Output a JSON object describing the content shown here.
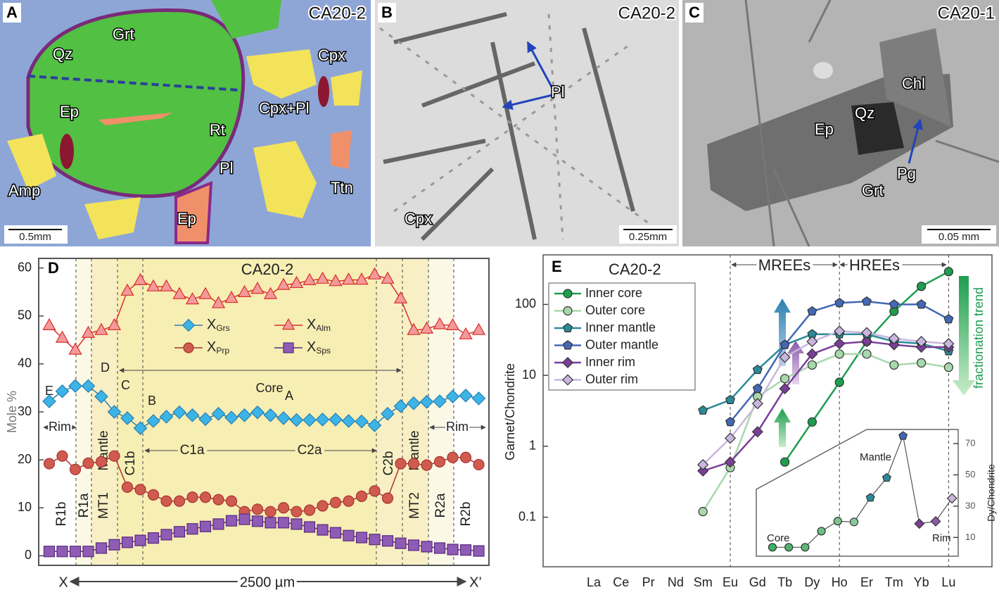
{
  "panels": [
    {
      "label": "A",
      "sample": "CA20-2",
      "minerals": [
        "Grt",
        "Qz",
        "Cpx",
        "Ep",
        "Rt",
        "Cpx+Pl",
        "Pl",
        "Amp",
        "Ttn",
        "Ep"
      ],
      "scale": "0.5mm"
    },
    {
      "label": "B",
      "sample": "CA20-2",
      "minerals": [
        "Pl",
        "Cpx"
      ],
      "scale": "0.25mm"
    },
    {
      "label": "C",
      "sample": "CA20-1",
      "minerals": [
        "Chl",
        "Qz",
        "Ep",
        "Pg",
        "Grt"
      ],
      "scale": "0.05 mm"
    }
  ],
  "chart_data": [
    {
      "type": "line",
      "panel_label": "D",
      "title": "CA20-2",
      "y_label": "Mole %",
      "categories": [
        null,
        null,
        null,
        null,
        null,
        null,
        null,
        null,
        null,
        null,
        null,
        null,
        null,
        null,
        null,
        null,
        null,
        null,
        null,
        null,
        null,
        null,
        null,
        null,
        null,
        null,
        null,
        null,
        null,
        null,
        null,
        null,
        null,
        null
      ],
      "series": [
        {
          "name": "XGrs",
          "color": "#2b7fb0",
          "fill": "#3cb4e6",
          "marker": "diamond",
          "values": [
            32.2,
            34.3,
            35.4,
            35.4,
            33.2,
            30,
            28.7,
            26.6,
            28.1,
            29,
            29.9,
            29.3,
            28.5,
            29.6,
            28.8,
            29.3,
            29.9,
            29.3,
            28.7,
            28.3,
            28.3,
            28.4,
            28.4,
            28.1,
            28,
            27.2,
            29.6,
            31.2,
            31.8,
            32.1,
            32.2,
            33.2,
            33.4,
            32.8
          ]
        },
        {
          "name": "XAlm",
          "color": "#d9302b",
          "fill": "#f39a9b",
          "marker": "triangle",
          "values": [
            48,
            45.4,
            42.9,
            46.4,
            47,
            48,
            55.2,
            57.4,
            56.1,
            56.1,
            54.5,
            53.4,
            54.5,
            52.6,
            53.7,
            54.9,
            55.6,
            54.5,
            56.4,
            56.8,
            57.4,
            57.7,
            57.2,
            57.5,
            57.5,
            58.6,
            57.7,
            53.6,
            47,
            47.3,
            48.2,
            48,
            46.1,
            47
          ]
        },
        {
          "name": "XPrp",
          "color": "#a83232",
          "fill": "#cf5b4f",
          "marker": "circle",
          "values": [
            19.2,
            20.8,
            18,
            19.3,
            19.6,
            20.8,
            14.3,
            13.8,
            12.7,
            11.4,
            11.4,
            12.2,
            12.2,
            11.7,
            11.4,
            9.2,
            9.7,
            9.2,
            10,
            9.2,
            9.5,
            10.4,
            11.1,
            11.4,
            12.4,
            13.5,
            12,
            19.2,
            19.2,
            18.9,
            19.6,
            20.5,
            20.5,
            19
          ]
        },
        {
          "name": "XSps",
          "color": "#5b2a7e",
          "fill": "#8e5bb5",
          "marker": "square",
          "values": [
            0.9,
            0.9,
            0.9,
            0.9,
            1.6,
            2.3,
            2.8,
            3.2,
            3.7,
            4.4,
            5,
            5.6,
            6.1,
            6.6,
            7.3,
            7.6,
            7.2,
            6.9,
            6.9,
            6.6,
            6,
            5.4,
            4.8,
            4.2,
            3.8,
            3.4,
            3.1,
            2.6,
            2.2,
            1.9,
            1.6,
            1.3,
            1.2,
            1
          ]
        }
      ],
      "ylim": [
        -2,
        62
      ],
      "yticks": [
        0,
        10,
        20,
        30,
        40,
        50,
        60
      ],
      "annotations": {
        "points": [
          "E",
          "D",
          "C",
          "B",
          "A"
        ],
        "spans": [
          "Rim",
          "Mantle",
          "Core",
          "Mantle",
          "Rim"
        ],
        "zones": [
          "R1b",
          "R1a",
          "MT1",
          "C1b",
          "C1a",
          "C2a",
          "C2b",
          "MT2",
          "R2a",
          "R2b"
        ]
      },
      "x_axis": {
        "start": "X",
        "end": "X’",
        "length": "2500 µm"
      }
    },
    {
      "type": "line",
      "panel_label": "E",
      "title": "CA20-2",
      "y_label": "Garnet/Chondrite",
      "log_scale": true,
      "categories": [
        "La",
        "Ce",
        "Pr",
        "Nd",
        "Sm",
        "Eu",
        "Gd",
        "Tb",
        "Dy",
        "Ho",
        "Er",
        "Tm",
        "Yb",
        "Lu"
      ],
      "series": [
        {
          "name": "Inner core",
          "color": "#1e9e4f",
          "marker": "circle",
          "values": [
            null,
            null,
            null,
            null,
            null,
            null,
            null,
            0.6,
            2.2,
            8,
            30,
            80,
            180,
            290
          ]
        },
        {
          "name": "Outer core",
          "color": "#a8d8ac",
          "marker": "circle",
          "values": [
            null,
            null,
            null,
            null,
            0.12,
            0.5,
            5,
            9,
            14,
            20,
            20,
            14,
            15,
            13
          ]
        },
        {
          "name": "Inner mantle",
          "color": "#2b8a99",
          "marker": "pentagon",
          "values": [
            null,
            null,
            null,
            null,
            3.2,
            4.5,
            12,
            27,
            38,
            38,
            38,
            30,
            28,
            22
          ]
        },
        {
          "name": "Outer mantle",
          "color": "#4468b5",
          "marker": "pentagon",
          "values": [
            null,
            null,
            null,
            null,
            null,
            2.2,
            6.5,
            27,
            80,
            105,
            110,
            100,
            100,
            62
          ]
        },
        {
          "name": "Inner rim",
          "color": "#7a3f98",
          "marker": "diamond",
          "values": [
            null,
            null,
            null,
            null,
            0.45,
            0.6,
            1.6,
            6.5,
            20,
            28,
            30,
            27,
            25,
            25
          ]
        },
        {
          "name": "Outer rim",
          "color": "#c9b6de",
          "marker": "diamond",
          "values": [
            null,
            null,
            null,
            null,
            0.55,
            1.3,
            4,
            18,
            30,
            42,
            40,
            33,
            30,
            28
          ]
        }
      ],
      "ylim": [
        0.02,
        500
      ],
      "yticks": [
        0.1,
        1,
        10,
        100
      ],
      "annotations": {
        "groups": [
          "MREEs",
          "HREEs"
        ],
        "trend": "fractionation trend"
      }
    },
    {
      "type": "line",
      "y_label": "Dy/Chondrite",
      "categories": [
        null,
        null,
        null,
        null,
        null,
        null,
        null,
        null,
        null,
        null,
        null,
        null
      ],
      "values": [
        3.7,
        3.7,
        3.7,
        14,
        20.4,
        19.9,
        35.4,
        48.1,
        74.9,
        18.8,
        20.3,
        35
      ],
      "colors": [
        "#3fae6a",
        "#4db36f",
        "#5cb878",
        "#6cbf85",
        "#7dc48f",
        "#8dca9a",
        "#2b8a99",
        "#2b8a99",
        "#4468b5",
        "#7a3f98",
        "#8a5aa8",
        "#c9b6de"
      ],
      "markers": [
        "circle",
        "circle",
        "circle",
        "circle",
        "circle",
        "circle",
        "pentagon",
        "pentagon",
        "pentagon",
        "diamond",
        "diamond",
        "diamond"
      ],
      "line_color": "#555555",
      "ylim": [
        -2,
        79
      ],
      "yticks": [
        10,
        30,
        50,
        70
      ],
      "annotations": [
        "Core",
        "Mantle",
        "Rim"
      ]
    }
  ]
}
